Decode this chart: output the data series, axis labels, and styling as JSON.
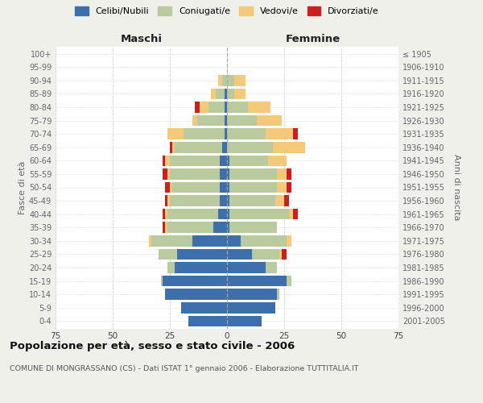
{
  "age_groups": [
    "0-4",
    "5-9",
    "10-14",
    "15-19",
    "20-24",
    "25-29",
    "30-34",
    "35-39",
    "40-44",
    "45-49",
    "50-54",
    "55-59",
    "60-64",
    "65-69",
    "70-74",
    "75-79",
    "80-84",
    "85-89",
    "90-94",
    "95-99",
    "100+"
  ],
  "birth_years": [
    "2001-2005",
    "1996-2000",
    "1991-1995",
    "1986-1990",
    "1981-1985",
    "1976-1980",
    "1971-1975",
    "1966-1970",
    "1961-1965",
    "1956-1960",
    "1951-1955",
    "1946-1950",
    "1941-1945",
    "1936-1940",
    "1931-1935",
    "1926-1930",
    "1921-1925",
    "1916-1920",
    "1911-1915",
    "1906-1910",
    "≤ 1905"
  ],
  "maschi_celibe": [
    17,
    20,
    27,
    28,
    23,
    22,
    15,
    6,
    4,
    3,
    3,
    3,
    3,
    2,
    1,
    1,
    1,
    1,
    0,
    0,
    0
  ],
  "maschi_coniugato": [
    0,
    0,
    0,
    1,
    3,
    8,
    18,
    20,
    22,
    22,
    21,
    22,
    22,
    21,
    18,
    12,
    7,
    4,
    2,
    0,
    0
  ],
  "maschi_vedovo": [
    0,
    0,
    0,
    0,
    0,
    0,
    1,
    1,
    1,
    1,
    1,
    1,
    2,
    1,
    7,
    2,
    4,
    2,
    2,
    0,
    0
  ],
  "maschi_divorziato": [
    0,
    0,
    0,
    0,
    0,
    0,
    0,
    1,
    1,
    1,
    2,
    2,
    1,
    1,
    0,
    0,
    2,
    0,
    0,
    0,
    0
  ],
  "femmine_celibe": [
    15,
    21,
    22,
    26,
    17,
    11,
    6,
    1,
    1,
    1,
    1,
    1,
    1,
    0,
    0,
    0,
    0,
    0,
    0,
    0,
    0
  ],
  "femmine_coniugata": [
    0,
    0,
    1,
    2,
    5,
    12,
    20,
    21,
    26,
    20,
    21,
    21,
    17,
    20,
    17,
    13,
    9,
    3,
    3,
    0,
    0
  ],
  "femmine_vedova": [
    0,
    0,
    0,
    0,
    0,
    1,
    2,
    0,
    2,
    4,
    4,
    4,
    8,
    14,
    12,
    11,
    10,
    5,
    5,
    0,
    0
  ],
  "femmine_divorziata": [
    0,
    0,
    0,
    0,
    0,
    2,
    0,
    0,
    2,
    2,
    2,
    2,
    0,
    0,
    2,
    0,
    0,
    0,
    0,
    0,
    0
  ],
  "colors": {
    "celibe": "#3d6faa",
    "coniugato": "#b8ca9e",
    "vedovo": "#f5c97a",
    "divorziato": "#cc2020"
  },
  "legend_labels": [
    "Celibi/Nubili",
    "Coniugati/e",
    "Vedovi/e",
    "Divorziati/e"
  ],
  "title": "Popolazione per età, sesso e stato civile - 2006",
  "subtitle": "COMUNE DI MONGRASSANO (CS) - Dati ISTAT 1° gennaio 2006 - Elaborazione TUTTITALIA.IT",
  "xlabel_left": "Maschi",
  "xlabel_right": "Femmine",
  "ylabel_left": "Fasce di età",
  "ylabel_right": "Anni di nascita",
  "xlim": 75,
  "bg_color": "#f0f0eb",
  "plot_bg": "#ffffff",
  "grid_color": "#cccccc"
}
